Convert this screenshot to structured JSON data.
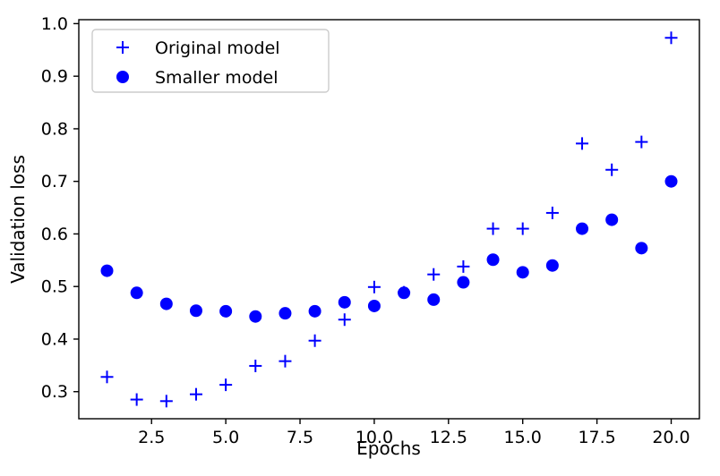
{
  "chart_data": {
    "type": "scatter",
    "title": "",
    "xlabel": "Epochs",
    "ylabel": "Validation loss",
    "grid": false,
    "legend_position": "upper left",
    "marker_color": "#0000ff",
    "xlim": [
      0.05,
      20.95
    ],
    "ylim": [
      0.2485,
      1.0075
    ],
    "xticks": [
      2.5,
      5.0,
      7.5,
      10.0,
      12.5,
      15.0,
      17.5,
      20.0
    ],
    "xtick_labels": [
      "2.5",
      "5.0",
      "7.5",
      "10.0",
      "12.5",
      "15.0",
      "17.5",
      "20.0"
    ],
    "yticks": [
      0.3,
      0.4,
      0.5,
      0.6,
      0.7,
      0.8,
      0.9,
      1.0
    ],
    "ytick_labels": [
      "0.3",
      "0.4",
      "0.5",
      "0.6",
      "0.7",
      "0.8",
      "0.9",
      "1.0"
    ],
    "x": [
      1,
      2,
      3,
      4,
      5,
      6,
      7,
      8,
      9,
      10,
      11,
      12,
      13,
      14,
      15,
      16,
      17,
      18,
      19,
      20
    ],
    "series": [
      {
        "name": "Original model",
        "marker": "plus",
        "color": "#0000ff",
        "values": [
          0.328,
          0.285,
          0.282,
          0.295,
          0.313,
          0.349,
          0.358,
          0.397,
          0.437,
          0.499,
          0.489,
          0.523,
          0.538,
          0.61,
          0.61,
          0.64,
          0.772,
          0.722,
          0.775,
          0.973
        ]
      },
      {
        "name": "Smaller model",
        "marker": "circle",
        "color": "#0000ff",
        "values": [
          0.53,
          0.488,
          0.467,
          0.454,
          0.453,
          0.443,
          0.449,
          0.453,
          0.47,
          0.463,
          0.488,
          0.475,
          0.508,
          0.551,
          0.527,
          0.54,
          0.61,
          0.627,
          0.573,
          0.7
        ]
      }
    ]
  }
}
